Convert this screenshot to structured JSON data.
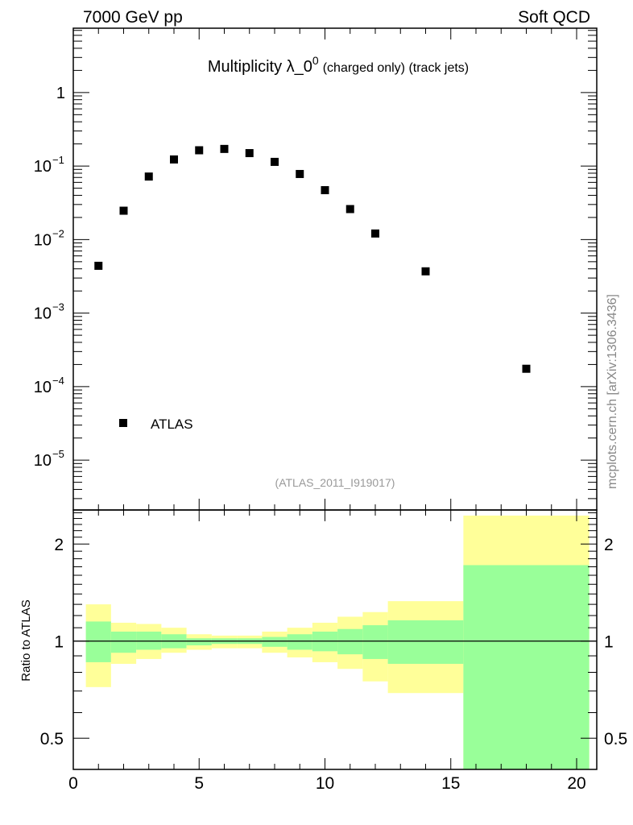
{
  "header": {
    "left": "7000 GeV pp",
    "right": "Soft QCD"
  },
  "side_label": "mcplots.cern.ch [arXiv:1306.3436]",
  "analysis_id": "(ATLAS_2011_I919017)",
  "chart_data": [
    {
      "type": "scatter",
      "title_main": "Multiplicity λ_0",
      "title_sup": "0",
      "title_suffix": "(charged only) (track jets)",
      "xlim": [
        0,
        20.8
      ],
      "ylim": [
        2.1e-06,
        7.5
      ],
      "yscale": "log",
      "ytick_labels": [
        {
          "v": 1,
          "base": "1",
          "exp": ""
        },
        {
          "v": 0.1,
          "base": "10",
          "exp": "−1"
        },
        {
          "v": 0.01,
          "base": "10",
          "exp": "−2"
        },
        {
          "v": 0.001,
          "base": "10",
          "exp": "−3"
        },
        {
          "v": 0.0001,
          "base": "10",
          "exp": "−4"
        },
        {
          "v": 1e-05,
          "base": "10",
          "exp": "−5"
        }
      ],
      "legend": {
        "entries": [
          "ATLAS"
        ],
        "placement": "bottom-left"
      },
      "series": [
        {
          "name": "ATLAS",
          "marker": "square",
          "color": "#000000",
          "x": [
            1,
            2,
            3,
            4,
            5,
            6,
            7,
            8,
            9,
            10,
            11,
            12,
            14,
            18
          ],
          "y": [
            0.0044,
            0.0247,
            0.072,
            0.123,
            0.164,
            0.171,
            0.15,
            0.114,
            0.078,
            0.047,
            0.026,
            0.0121,
            0.0037,
            0.000175
          ]
        }
      ]
    },
    {
      "type": "area",
      "ylabel": "Ratio to ATLAS",
      "xlim": [
        0,
        20.8
      ],
      "ylim": [
        0.4,
        2.55
      ],
      "yscale": "log",
      "ytick_labels": [
        {
          "v": 2,
          "label": "2"
        },
        {
          "v": 1,
          "label": "1"
        },
        {
          "v": 0.5,
          "label": "0.5"
        }
      ],
      "xtick_labels": [
        "0",
        "5",
        "10",
        "15",
        "20"
      ],
      "reference_line": 1,
      "bands": {
        "colors": {
          "total": "#ffff99",
          "stat": "#99ff99"
        },
        "bins": [
          {
            "lo": 0.5,
            "hi": 1.5,
            "tot": [
              0.72,
              1.3
            ],
            "stat": [
              0.86,
              1.15
            ]
          },
          {
            "lo": 1.5,
            "hi": 2.5,
            "tot": [
              0.85,
              1.14
            ],
            "stat": [
              0.92,
              1.07
            ]
          },
          {
            "lo": 2.5,
            "hi": 3.5,
            "tot": [
              0.88,
              1.13
            ],
            "stat": [
              0.94,
              1.07
            ]
          },
          {
            "lo": 3.5,
            "hi": 4.5,
            "tot": [
              0.92,
              1.1
            ],
            "stat": [
              0.95,
              1.05
            ]
          },
          {
            "lo": 4.5,
            "hi": 5.5,
            "tot": [
              0.94,
              1.05
            ],
            "stat": [
              0.97,
              1.02
            ]
          },
          {
            "lo": 5.5,
            "hi": 6.5,
            "tot": [
              0.95,
              1.04
            ],
            "stat": [
              0.98,
              1.02
            ]
          },
          {
            "lo": 6.5,
            "hi": 7.5,
            "tot": [
              0.95,
              1.04
            ],
            "stat": [
              0.98,
              1.02
            ]
          },
          {
            "lo": 7.5,
            "hi": 8.5,
            "tot": [
              0.92,
              1.07
            ],
            "stat": [
              0.96,
              1.03
            ]
          },
          {
            "lo": 8.5,
            "hi": 9.5,
            "tot": [
              0.89,
              1.1
            ],
            "stat": [
              0.94,
              1.05
            ]
          },
          {
            "lo": 9.5,
            "hi": 10.5,
            "tot": [
              0.86,
              1.14
            ],
            "stat": [
              0.93,
              1.07
            ]
          },
          {
            "lo": 10.5,
            "hi": 11.5,
            "tot": [
              0.82,
              1.19
            ],
            "stat": [
              0.91,
              1.09
            ]
          },
          {
            "lo": 11.5,
            "hi": 12.5,
            "tot": [
              0.75,
              1.23
            ],
            "stat": [
              0.88,
              1.12
            ]
          },
          {
            "lo": 12.5,
            "hi": 15.5,
            "tot": [
              0.69,
              1.33
            ],
            "stat": [
              0.85,
              1.16
            ]
          },
          {
            "lo": 15.5,
            "hi": 20.5,
            "tot": [
              0.25,
              2.45
            ],
            "stat": [
              0.3,
              1.72
            ]
          }
        ]
      }
    }
  ]
}
